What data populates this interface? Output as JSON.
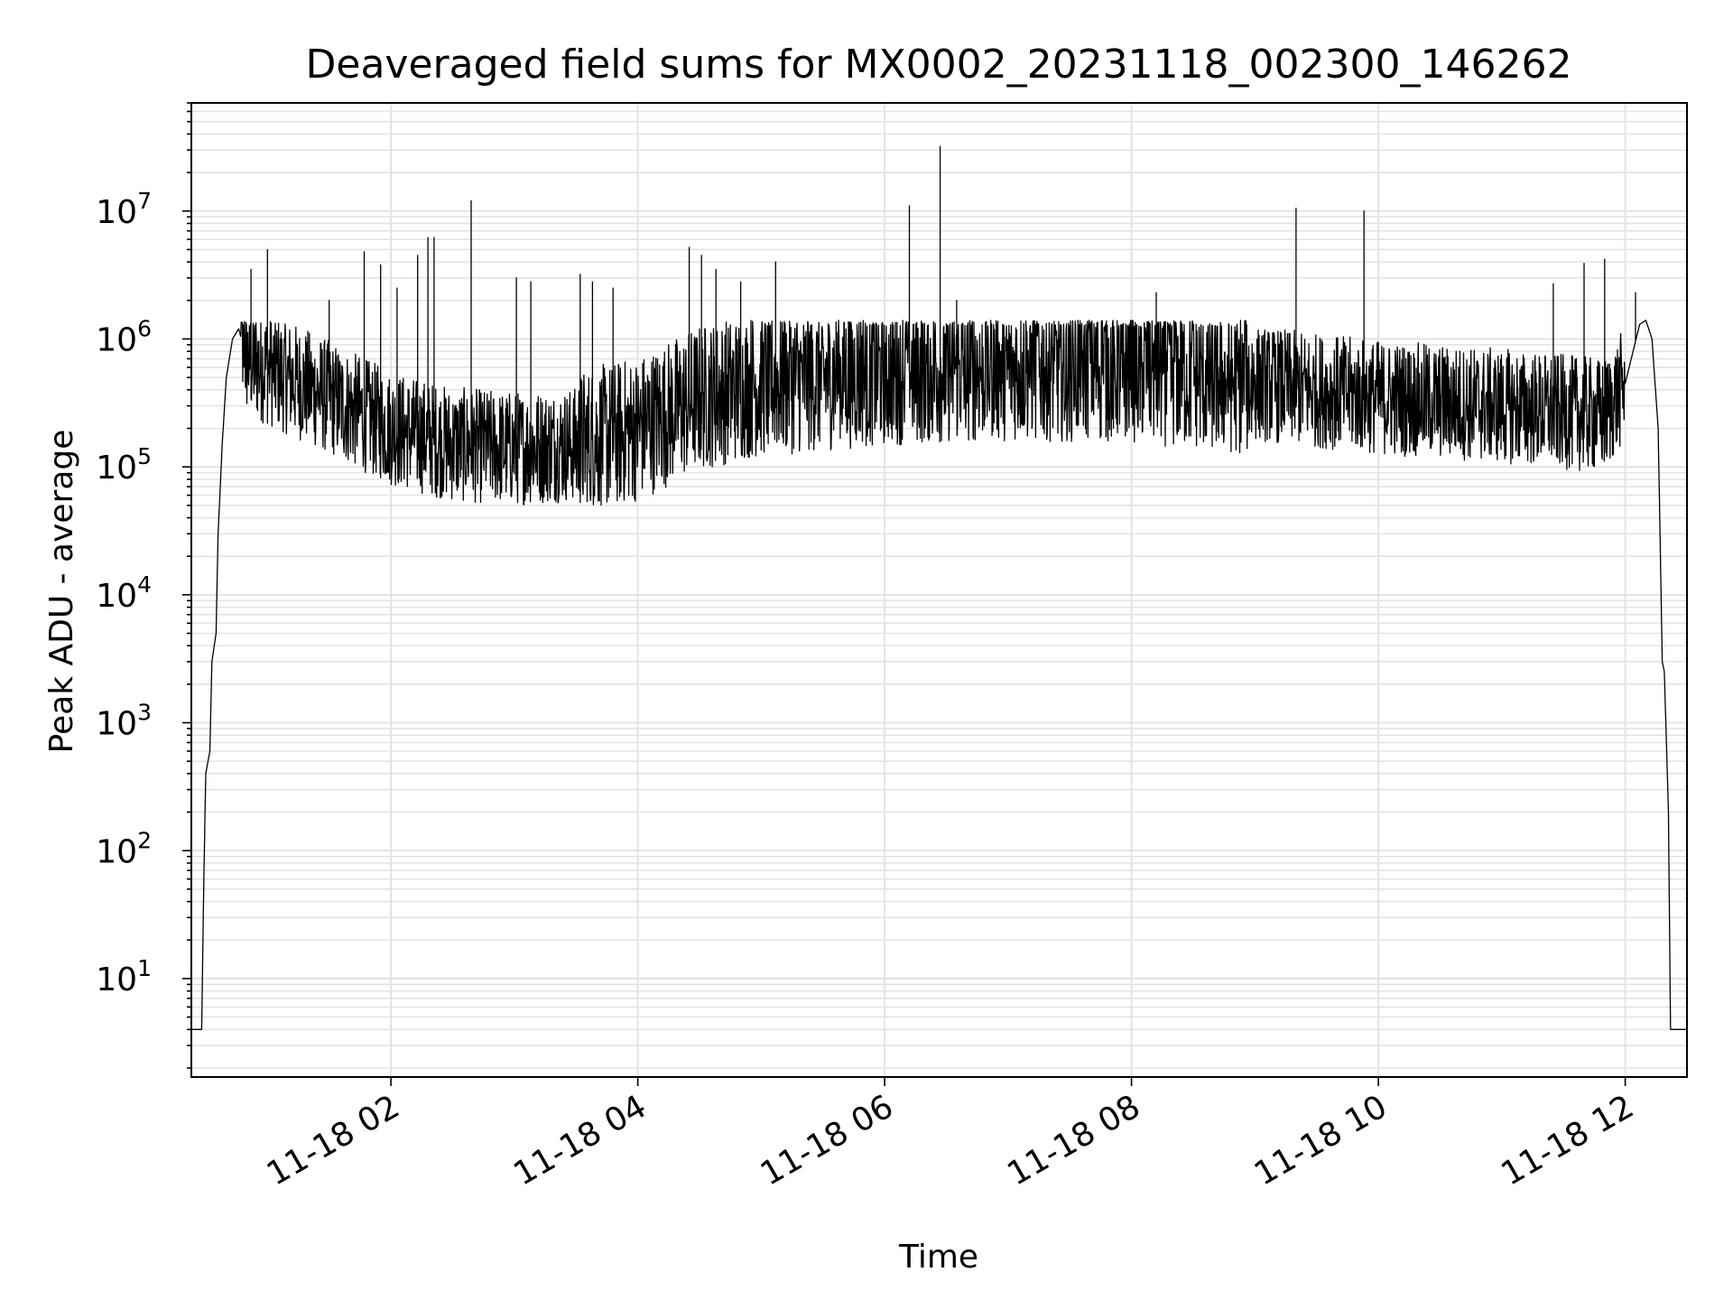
{
  "chart_data": {
    "type": "line",
    "title": "Deaveraged field sums for MX0002_20231118_002300_146262",
    "xlabel": "Time",
    "ylabel": "Peak ADU - average",
    "yscale": "log",
    "ylim": [
      1.7,
      70000000
    ],
    "xlim": [
      "2023-11-18 00:23",
      "2023-11-18 12:30"
    ],
    "x_ticks": [
      "11-18 02",
      "11-18 04",
      "11-18 06",
      "11-18 08",
      "11-18 10",
      "11-18 12"
    ],
    "y_ticks": [
      {
        "base": "10",
        "exp": "1"
      },
      {
        "base": "10",
        "exp": "2"
      },
      {
        "base": "10",
        "exp": "3"
      },
      {
        "base": "10",
        "exp": "4"
      },
      {
        "base": "10",
        "exp": "5"
      },
      {
        "base": "10",
        "exp": "6"
      },
      {
        "base": "10",
        "exp": "7"
      }
    ],
    "grid": true,
    "line_color": "#000000",
    "series": [
      {
        "envelope": [
          {
            "x": "2023-11-18 00:23",
            "y": 4
          },
          {
            "x": "2023-11-18 00:28",
            "y": 4
          },
          {
            "x": "2023-11-18 00:29",
            "y": 50
          },
          {
            "x": "2023-11-18 00:30",
            "y": 400
          },
          {
            "x": "2023-11-18 00:32",
            "y": 600
          },
          {
            "x": "2023-11-18 00:33",
            "y": 3000
          },
          {
            "x": "2023-11-18 00:35",
            "y": 5000
          },
          {
            "x": "2023-11-18 00:36",
            "y": 30000
          },
          {
            "x": "2023-11-18 00:38",
            "y": 150000
          },
          {
            "x": "2023-11-18 00:40",
            "y": 500000
          },
          {
            "x": "2023-11-18 00:43",
            "y": 1000000
          },
          {
            "x": "2023-11-18 00:46",
            "y": 1200000
          },
          {
            "x": "2023-11-18 00:50",
            "y": 700000
          },
          {
            "x": "2023-11-18 01:10",
            "y": 500000
          },
          {
            "x": "2023-11-18 01:30",
            "y": 350000
          },
          {
            "x": "2023-11-18 02:00",
            "y": 200000
          },
          {
            "x": "2023-11-18 02:30",
            "y": 150000
          },
          {
            "x": "2023-11-18 03:00",
            "y": 140000
          },
          {
            "x": "2023-11-18 03:30",
            "y": 150000
          },
          {
            "x": "2023-11-18 04:00",
            "y": 200000
          },
          {
            "x": "2023-11-18 04:30",
            "y": 350000
          },
          {
            "x": "2023-11-18 05:00",
            "y": 450000
          },
          {
            "x": "2023-11-18 06:00",
            "y": 550000
          },
          {
            "x": "2023-11-18 07:00",
            "y": 600000
          },
          {
            "x": "2023-11-18 08:00",
            "y": 580000
          },
          {
            "x": "2023-11-18 09:00",
            "y": 450000
          },
          {
            "x": "2023-11-18 10:00",
            "y": 350000
          },
          {
            "x": "2023-11-18 11:00",
            "y": 300000
          },
          {
            "x": "2023-11-18 11:50",
            "y": 250000
          },
          {
            "x": "2023-11-18 12:00",
            "y": 450000
          },
          {
            "x": "2023-11-18 12:07",
            "y": 1300000
          },
          {
            "x": "2023-11-18 12:10",
            "y": 1400000
          },
          {
            "x": "2023-11-18 12:13",
            "y": 1000000
          },
          {
            "x": "2023-11-18 12:16",
            "y": 200000
          },
          {
            "x": "2023-11-18 12:18",
            "y": 3000
          },
          {
            "x": "2023-11-18 12:19",
            "y": 2500
          },
          {
            "x": "2023-11-18 12:21",
            "y": 200
          },
          {
            "x": "2023-11-18 12:22",
            "y": 4
          },
          {
            "x": "2023-11-18 12:30",
            "y": 4
          }
        ],
        "spikes": [
          {
            "x": "2023-11-18 00:52",
            "y": 3500000
          },
          {
            "x": "2023-11-18 01:00",
            "y": 5000000
          },
          {
            "x": "2023-11-18 01:30",
            "y": 2000000
          },
          {
            "x": "2023-11-18 01:47",
            "y": 4800000
          },
          {
            "x": "2023-11-18 01:55",
            "y": 3800000
          },
          {
            "x": "2023-11-18 02:03",
            "y": 2500000
          },
          {
            "x": "2023-11-18 02:13",
            "y": 4500000
          },
          {
            "x": "2023-11-18 02:18",
            "y": 6200000
          },
          {
            "x": "2023-11-18 02:21",
            "y": 6200000
          },
          {
            "x": "2023-11-18 02:39",
            "y": 12000000
          },
          {
            "x": "2023-11-18 03:01",
            "y": 3000000
          },
          {
            "x": "2023-11-18 03:08",
            "y": 2800000
          },
          {
            "x": "2023-11-18 03:32",
            "y": 3200000
          },
          {
            "x": "2023-11-18 03:38",
            "y": 2800000
          },
          {
            "x": "2023-11-18 03:48",
            "y": 2500000
          },
          {
            "x": "2023-11-18 04:25",
            "y": 5200000
          },
          {
            "x": "2023-11-18 04:31",
            "y": 4500000
          },
          {
            "x": "2023-11-18 04:38",
            "y": 3500000
          },
          {
            "x": "2023-11-18 04:50",
            "y": 2800000
          },
          {
            "x": "2023-11-18 05:07",
            "y": 4000000
          },
          {
            "x": "2023-11-18 06:12",
            "y": 11000000
          },
          {
            "x": "2023-11-18 06:27",
            "y": 32000000
          },
          {
            "x": "2023-11-18 06:35",
            "y": 2000000
          },
          {
            "x": "2023-11-18 08:12",
            "y": 2300000
          },
          {
            "x": "2023-11-18 09:20",
            "y": 10500000
          },
          {
            "x": "2023-11-18 09:53",
            "y": 10000000
          },
          {
            "x": "2023-11-18 11:25",
            "y": 2700000
          },
          {
            "x": "2023-11-18 11:40",
            "y": 3900000
          },
          {
            "x": "2023-11-18 11:50",
            "y": 4200000
          },
          {
            "x": "2023-11-18 12:05",
            "y": 2300000
          }
        ]
      }
    ]
  }
}
